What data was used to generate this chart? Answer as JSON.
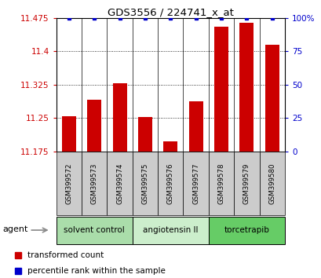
{
  "title": "GDS3556 / 224741_x_at",
  "samples": [
    "GSM399572",
    "GSM399573",
    "GSM399574",
    "GSM399575",
    "GSM399576",
    "GSM399577",
    "GSM399578",
    "GSM399579",
    "GSM399580"
  ],
  "bar_values": [
    11.255,
    11.292,
    11.328,
    11.252,
    11.197,
    11.288,
    11.455,
    11.465,
    11.415
  ],
  "percentile_values": [
    100,
    100,
    100,
    100,
    100,
    100,
    100,
    100,
    100
  ],
  "bar_color": "#cc0000",
  "percentile_color": "#0000cc",
  "ylim_left": [
    11.175,
    11.475
  ],
  "ylim_right": [
    0,
    100
  ],
  "yticks_left": [
    11.175,
    11.25,
    11.325,
    11.4,
    11.475
  ],
  "yticks_right": [
    0,
    25,
    50,
    75,
    100
  ],
  "ytick_labels_left": [
    "11.175",
    "11.25",
    "11.325",
    "11.4",
    "11.475"
  ],
  "ytick_labels_right": [
    "0",
    "25",
    "50",
    "75",
    "100%"
  ],
  "groups": [
    {
      "label": "solvent control",
      "samples": [
        0,
        1,
        2
      ],
      "color": "#aaddaa"
    },
    {
      "label": "angiotensin II",
      "samples": [
        3,
        4,
        5
      ],
      "color": "#cceecc"
    },
    {
      "label": "torcetrapib",
      "samples": [
        6,
        7,
        8
      ],
      "color": "#66cc66"
    }
  ],
  "agent_label": "agent",
  "legend_bar_label": "transformed count",
  "legend_perc_label": "percentile rank within the sample",
  "sample_box_color": "#cccccc",
  "bar_width": 0.55
}
